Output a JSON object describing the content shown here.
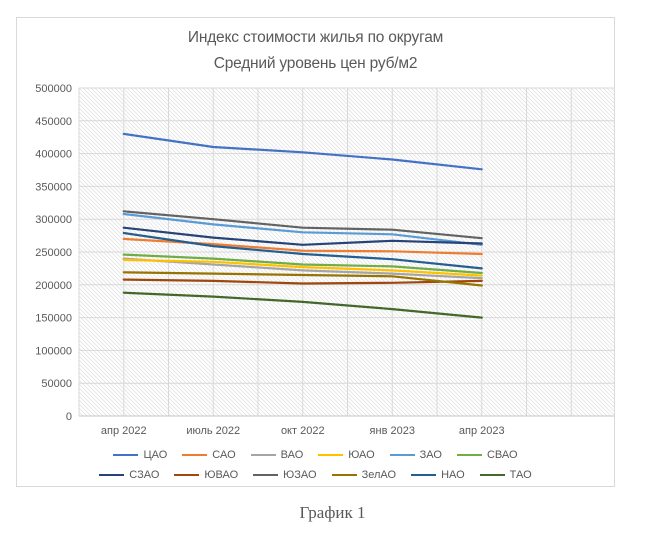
{
  "caption": "График 1",
  "colors": {
    "text": "#595959",
    "grid": "#D9D9D9",
    "frame_border": "#D9D9D9",
    "hatch": "#E5E5E5",
    "axis_line": "#C6C6C6"
  },
  "chart_data": {
    "type": "line",
    "title": "Индекс стоимости жилья по округам",
    "subtitle": "Средний уровень цен руб/м2",
    "xlabel": "",
    "ylabel": "",
    "ylim": [
      0,
      500000
    ],
    "ytick_step": 50000,
    "yticks": [
      "0",
      "50000",
      "100000",
      "150000",
      "200000",
      "250000",
      "300000",
      "350000",
      "400000",
      "450000",
      "500000"
    ],
    "grid": "horizontal and vertical light gray, hatched plot background",
    "legend_position": "bottom, two rows of six",
    "categories": [
      "апр 2022",
      "июль 2022",
      "окт 2022",
      "янв 2023",
      "апр 2023"
    ],
    "series": [
      {
        "name": "ЦАО",
        "color": "#4472C4",
        "values": [
          430000,
          410000,
          402000,
          391000,
          376000
        ]
      },
      {
        "name": "САО",
        "color": "#ED7D31",
        "values": [
          270000,
          262000,
          252000,
          251000,
          247000
        ]
      },
      {
        "name": "ВАО",
        "color": "#A5A5A5",
        "values": [
          240000,
          231000,
          222000,
          217000,
          210000
        ]
      },
      {
        "name": "ЮАО",
        "color": "#FFC000",
        "values": [
          238000,
          235000,
          227000,
          222000,
          214000
        ]
      },
      {
        "name": "ЗАО",
        "color": "#5B9BD5",
        "values": [
          308000,
          292000,
          280000,
          277000,
          261000
        ]
      },
      {
        "name": "СВАО",
        "color": "#70AD47",
        "values": [
          246000,
          240000,
          231000,
          228000,
          218000
        ]
      },
      {
        "name": "СЗАО",
        "color": "#264478",
        "values": [
          287000,
          272000,
          261000,
          267000,
          263000
        ]
      },
      {
        "name": "ЮВАО",
        "color": "#9E480E",
        "values": [
          208000,
          206000,
          202000,
          203000,
          206000
        ]
      },
      {
        "name": "ЮЗАО",
        "color": "#636363",
        "values": [
          312000,
          300000,
          287000,
          284000,
          271000
        ]
      },
      {
        "name": "ЗелАО",
        "color": "#997300",
        "values": [
          219000,
          217000,
          215000,
          213000,
          199000
        ]
      },
      {
        "name": "НАО",
        "color": "#255E91",
        "values": [
          279000,
          259000,
          247000,
          239000,
          225000
        ]
      },
      {
        "name": "ТАО",
        "color": "#43682B",
        "values": [
          188000,
          182000,
          174000,
          163000,
          150000
        ]
      }
    ]
  }
}
